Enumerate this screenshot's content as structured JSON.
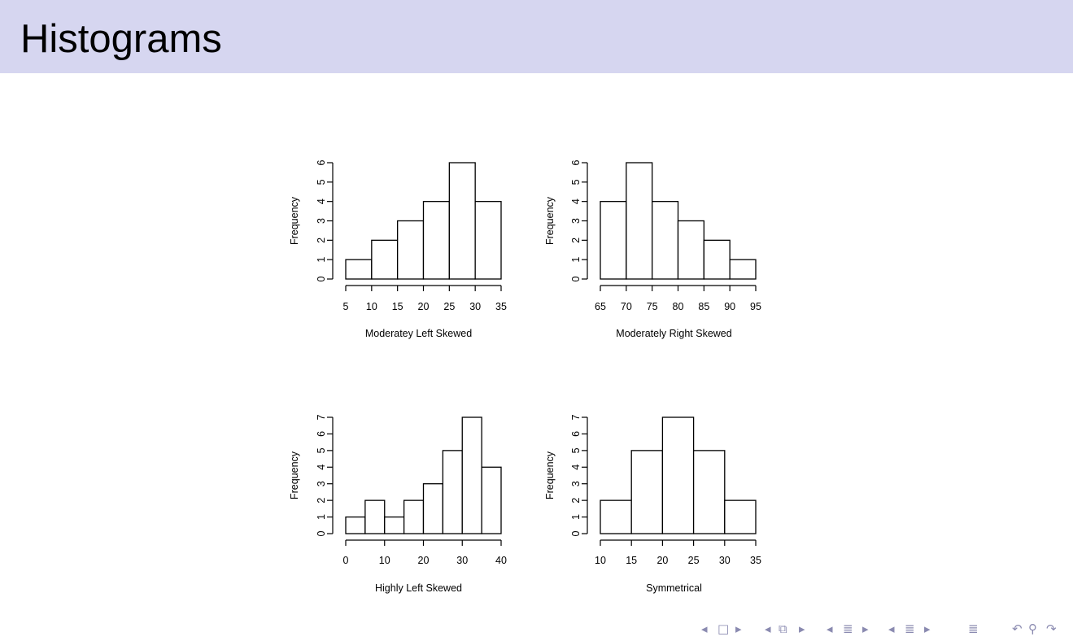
{
  "header": {
    "title": "Histograms"
  },
  "chart_data": [
    {
      "type": "bar",
      "title": "",
      "xlabel": "Moderatey Left Skewed",
      "ylabel": "Frequency",
      "bin_edges": [
        5,
        10,
        15,
        20,
        25,
        30,
        35
      ],
      "values": [
        1,
        2,
        3,
        4,
        6,
        4
      ],
      "xticks": [
        5,
        10,
        15,
        20,
        25,
        30,
        35
      ],
      "yticks": [
        0,
        1,
        2,
        3,
        4,
        5,
        6
      ],
      "xlim": [
        5,
        35
      ],
      "ylim": [
        0,
        6
      ],
      "grid": false
    },
    {
      "type": "bar",
      "title": "",
      "xlabel": "Moderately Right Skewed",
      "ylabel": "Frequency",
      "bin_edges": [
        65,
        70,
        75,
        80,
        85,
        90,
        95
      ],
      "values": [
        4,
        6,
        4,
        3,
        2,
        1
      ],
      "xticks": [
        65,
        70,
        75,
        80,
        85,
        90,
        95
      ],
      "yticks": [
        0,
        1,
        2,
        3,
        4,
        5,
        6
      ],
      "xlim": [
        65,
        95
      ],
      "ylim": [
        0,
        6
      ],
      "grid": false
    },
    {
      "type": "bar",
      "title": "",
      "xlabel": "Highly Left Skewed",
      "ylabel": "Frequency",
      "bin_edges": [
        0,
        5,
        10,
        15,
        20,
        25,
        30,
        35,
        40
      ],
      "values": [
        1,
        2,
        1,
        2,
        3,
        5,
        7,
        4
      ],
      "xticks": [
        0,
        10,
        20,
        30,
        40
      ],
      "yticks": [
        0,
        1,
        2,
        3,
        4,
        5,
        6,
        7
      ],
      "xlim": [
        0,
        40
      ],
      "ylim": [
        0,
        7
      ],
      "grid": false
    },
    {
      "type": "bar",
      "title": "",
      "xlabel": "Symmetrical",
      "ylabel": "Frequency",
      "bin_edges": [
        10,
        15,
        20,
        25,
        30,
        35
      ],
      "values": [
        2,
        5,
        7,
        5,
        2
      ],
      "xticks": [
        10,
        15,
        20,
        25,
        30,
        35
      ],
      "yticks": [
        0,
        1,
        2,
        3,
        4,
        5,
        6,
        7
      ],
      "xlim": [
        10,
        35
      ],
      "ylim": [
        0,
        7
      ],
      "grid": false
    }
  ],
  "navigation": {
    "icons": [
      "prev-slide-icon",
      "frame-icon",
      "next-slide-icon",
      "prev-frame-icon",
      "frame-stack-icon",
      "next-frame-icon",
      "prev-subsection-icon",
      "subsection-icon",
      "next-subsection-icon",
      "prev-section-icon",
      "section-icon",
      "next-section-icon",
      "toc-icon",
      "back-icon",
      "search-icon",
      "forward-icon"
    ]
  }
}
